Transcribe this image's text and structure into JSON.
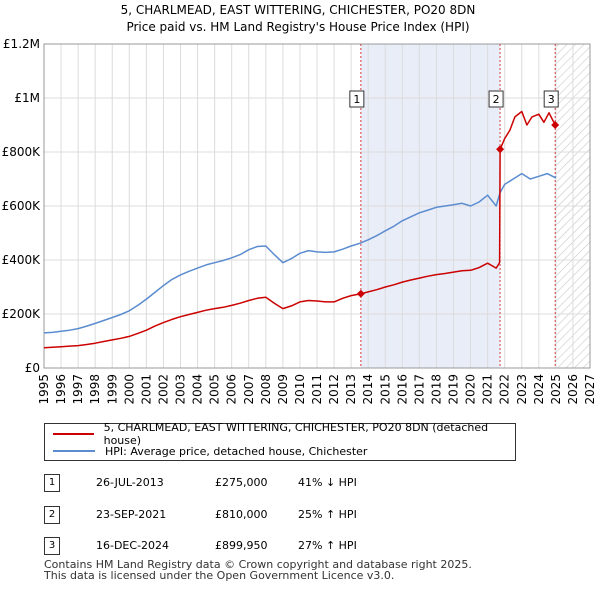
{
  "chart_data": {
    "type": "line",
    "title": "5, CHARLMEAD, EAST WITTERING, CHICHESTER, PO20 8DN",
    "subtitle": "Price paid vs. HM Land Registry's House Price Index (HPI)",
    "xlabel": "",
    "ylabel": "",
    "xlim": [
      1995,
      2027
    ],
    "ylim": [
      0,
      1200000
    ],
    "y_ticks": [
      {
        "value": 0,
        "label": "£0"
      },
      {
        "value": 200000,
        "label": "£200K"
      },
      {
        "value": 400000,
        "label": "£400K"
      },
      {
        "value": 600000,
        "label": "£600K"
      },
      {
        "value": 800000,
        "label": "£800K"
      },
      {
        "value": 1000000,
        "label": "£1M"
      },
      {
        "value": 1200000,
        "label": "£1.2M"
      }
    ],
    "x_ticks": [
      "1995",
      "1996",
      "1997",
      "1998",
      "1999",
      "2000",
      "2001",
      "2002",
      "2003",
      "2004",
      "2005",
      "2006",
      "2007",
      "2008",
      "2009",
      "2010",
      "2011",
      "2012",
      "2013",
      "2014",
      "2015",
      "2016",
      "2017",
      "2018",
      "2019",
      "2020",
      "2021",
      "2022",
      "2023",
      "2024",
      "2025",
      "2026",
      "2027"
    ],
    "grid": true,
    "legend_position": "bottom",
    "shaded_region": {
      "from": 2013.57,
      "to": 2021.73
    },
    "forecast_region": {
      "from": 2025.0,
      "to": 2027.0
    },
    "series": [
      {
        "name": "5, CHARLMEAD, EAST WITTERING, CHICHESTER, PO20 8DN (detached house)",
        "color": "#cc0000",
        "x": [
          1995.0,
          1995.5,
          1996.0,
          1996.5,
          1997.0,
          1997.5,
          1998.0,
          1998.5,
          1999.0,
          1999.5,
          2000.0,
          2000.5,
          2001.0,
          2001.5,
          2002.0,
          2002.5,
          2003.0,
          2003.5,
          2004.0,
          2004.5,
          2005.0,
          2005.5,
          2006.0,
          2006.5,
          2007.0,
          2007.5,
          2008.0,
          2008.5,
          2009.0,
          2009.5,
          2010.0,
          2010.5,
          2011.0,
          2011.5,
          2012.0,
          2012.5,
          2013.0,
          2013.57,
          2014.0,
          2014.5,
          2015.0,
          2015.5,
          2016.0,
          2016.5,
          2017.0,
          2017.5,
          2018.0,
          2018.5,
          2019.0,
          2019.5,
          2020.0,
          2020.5,
          2021.0,
          2021.5,
          2021.7,
          2021.73,
          2022.0,
          2022.3,
          2022.6,
          2023.0,
          2023.3,
          2023.6,
          2024.0,
          2024.3,
          2024.6,
          2024.96,
          2025.0
        ],
        "y": [
          75000,
          77000,
          79000,
          81000,
          83000,
          87000,
          92000,
          98000,
          104000,
          110000,
          117000,
          128000,
          140000,
          155000,
          168000,
          180000,
          190000,
          198000,
          206000,
          214000,
          220000,
          225000,
          232000,
          240000,
          250000,
          258000,
          262000,
          240000,
          220000,
          230000,
          245000,
          250000,
          248000,
          245000,
          245000,
          258000,
          268000,
          275000,
          282000,
          290000,
          300000,
          308000,
          318000,
          326000,
          333000,
          340000,
          346000,
          350000,
          355000,
          360000,
          362000,
          372000,
          388000,
          370000,
          390000,
          810000,
          850000,
          880000,
          930000,
          950000,
          900000,
          930000,
          940000,
          910000,
          945000,
          899950,
          905000
        ]
      },
      {
        "name": "HPI: Average price, detached house, Chichester",
        "color": "#5b8ccf",
        "x": [
          1995.0,
          1995.5,
          1996.0,
          1996.5,
          1997.0,
          1997.5,
          1998.0,
          1998.5,
          1999.0,
          1999.5,
          2000.0,
          2000.5,
          2001.0,
          2001.5,
          2002.0,
          2002.5,
          2003.0,
          2003.5,
          2004.0,
          2004.5,
          2005.0,
          2005.5,
          2006.0,
          2006.5,
          2007.0,
          2007.5,
          2008.0,
          2008.5,
          2009.0,
          2009.5,
          2010.0,
          2010.5,
          2011.0,
          2011.5,
          2012.0,
          2012.5,
          2013.0,
          2013.5,
          2014.0,
          2014.5,
          2015.0,
          2015.5,
          2016.0,
          2016.5,
          2017.0,
          2017.5,
          2018.0,
          2018.5,
          2019.0,
          2019.5,
          2020.0,
          2020.5,
          2021.0,
          2021.5,
          2021.73,
          2022.0,
          2022.5,
          2023.0,
          2023.5,
          2024.0,
          2024.5,
          2024.96,
          2025.0
        ],
        "y": [
          130000,
          132000,
          136000,
          140000,
          146000,
          155000,
          165000,
          176000,
          187000,
          198000,
          212000,
          232000,
          255000,
          280000,
          305000,
          328000,
          345000,
          358000,
          370000,
          382000,
          390000,
          398000,
          408000,
          420000,
          438000,
          450000,
          452000,
          420000,
          390000,
          405000,
          425000,
          435000,
          430000,
          428000,
          430000,
          440000,
          452000,
          462000,
          475000,
          490000,
          508000,
          525000,
          545000,
          560000,
          575000,
          585000,
          595000,
          600000,
          605000,
          610000,
          600000,
          615000,
          640000,
          600000,
          650000,
          680000,
          700000,
          720000,
          700000,
          710000,
          720000,
          705000,
          710000
        ]
      }
    ],
    "markers": [
      {
        "label": "1",
        "x": 2013.57,
        "y": 275000,
        "date": "26-JUL-2013",
        "price": "£275,000",
        "hpi_text": "41% ↓ HPI"
      },
      {
        "label": "2",
        "x": 2021.73,
        "y": 810000,
        "date": "23-SEP-2021",
        "price": "£810,000",
        "hpi_text": "25% ↑ HPI"
      },
      {
        "label": "3",
        "x": 2024.96,
        "y": 899950,
        "date": "16-DEC-2024",
        "price": "£899,950",
        "hpi_text": "27% ↑ HPI"
      }
    ]
  },
  "footer": {
    "line1": "Contains HM Land Registry data © Crown copyright and database right 2025.",
    "line2": "This data is licensed under the Open Government Licence v3.0."
  }
}
